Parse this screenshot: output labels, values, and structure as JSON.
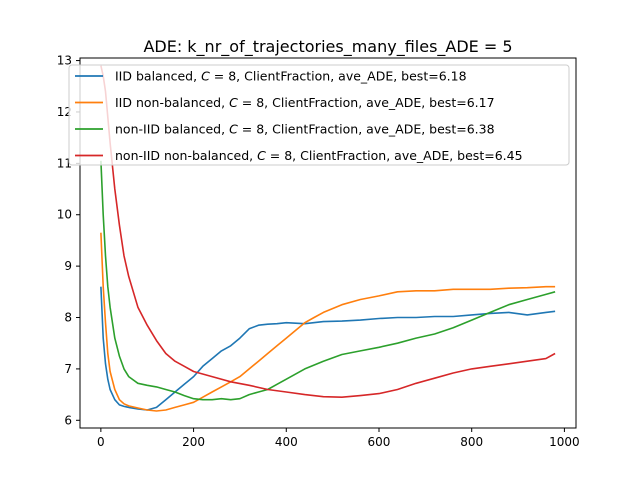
{
  "chart_data": {
    "type": "line",
    "title": "ADE: k_nr_of_trajectories_many_files_ADE = 5",
    "xlabel": "",
    "ylabel": "",
    "xlim": [
      -45,
      1025
    ],
    "ylim": [
      5.85,
      13.05
    ],
    "xticks": [
      0,
      200,
      400,
      600,
      800,
      1000
    ],
    "xtick_labels": [
      "0",
      "200",
      "400",
      "600",
      "800",
      "1000"
    ],
    "yticks": [
      6,
      7,
      8,
      9,
      10,
      11,
      12,
      13
    ],
    "ytick_labels": [
      "6",
      "7",
      "8",
      "9",
      "10",
      "11",
      "12",
      "13"
    ],
    "grid": false,
    "legend_position": "top-left",
    "series": [
      {
        "name": "IID balanced, C = 8, ClientFraction, ave_ADE, best=6.18",
        "legend_prefix": "IID balanced, ",
        "legend_var": "C",
        "legend_suffix": " = 8, ClientFraction, ave_ADE, best=6.18",
        "color": "#1f77b4",
        "x": [
          0,
          5,
          10,
          15,
          20,
          30,
          40,
          50,
          60,
          80,
          100,
          120,
          140,
          160,
          180,
          200,
          220,
          240,
          260,
          280,
          300,
          320,
          340,
          360,
          380,
          400,
          440,
          480,
          520,
          560,
          600,
          640,
          680,
          720,
          760,
          800,
          840,
          880,
          920,
          960,
          980
        ],
        "y": [
          8.6,
          7.6,
          7.1,
          6.8,
          6.6,
          6.4,
          6.3,
          6.27,
          6.25,
          6.22,
          6.2,
          6.25,
          6.4,
          6.55,
          6.7,
          6.85,
          7.05,
          7.2,
          7.35,
          7.45,
          7.6,
          7.78,
          7.85,
          7.87,
          7.88,
          7.9,
          7.88,
          7.92,
          7.93,
          7.95,
          7.98,
          8.0,
          8.0,
          8.02,
          8.02,
          8.05,
          8.08,
          8.1,
          8.05,
          8.1,
          8.12
        ]
      },
      {
        "name": "IID non-balanced, C = 8, ClientFraction, ave_ADE, best=6.17",
        "legend_prefix": "IID non-balanced, ",
        "legend_var": "C",
        "legend_suffix": " = 8, ClientFraction, ave_ADE, best=6.17",
        "color": "#ff7f0e",
        "x": [
          0,
          5,
          10,
          15,
          20,
          30,
          40,
          50,
          60,
          80,
          100,
          120,
          140,
          160,
          180,
          200,
          220,
          240,
          260,
          280,
          300,
          320,
          340,
          360,
          380,
          400,
          420,
          440,
          460,
          480,
          520,
          560,
          600,
          640,
          680,
          720,
          760,
          800,
          840,
          880,
          920,
          960,
          980
        ],
        "y": [
          9.65,
          8.6,
          7.9,
          7.3,
          6.95,
          6.6,
          6.4,
          6.32,
          6.28,
          6.24,
          6.2,
          6.18,
          6.2,
          6.25,
          6.3,
          6.35,
          6.45,
          6.55,
          6.65,
          6.75,
          6.85,
          7.0,
          7.15,
          7.3,
          7.45,
          7.6,
          7.75,
          7.9,
          8.0,
          8.1,
          8.25,
          8.35,
          8.42,
          8.5,
          8.52,
          8.52,
          8.55,
          8.55,
          8.55,
          8.57,
          8.58,
          8.6,
          8.6
        ]
      },
      {
        "name": "non-IID balanced, C = 8, ClientFraction, ave_ADE, best=6.38",
        "legend_prefix": "non-IID balanced, ",
        "legend_var": "C",
        "legend_suffix": " = 8, ClientFraction, ave_ADE, best=6.38",
        "color": "#2ca02c",
        "x": [
          0,
          5,
          10,
          15,
          20,
          30,
          40,
          50,
          60,
          80,
          100,
          120,
          140,
          160,
          180,
          200,
          220,
          240,
          260,
          280,
          300,
          320,
          340,
          360,
          380,
          400,
          440,
          480,
          520,
          560,
          600,
          640,
          680,
          720,
          760,
          800,
          840,
          880,
          920,
          960,
          980
        ],
        "y": [
          11.05,
          10.0,
          9.2,
          8.6,
          8.2,
          7.6,
          7.25,
          7.0,
          6.85,
          6.72,
          6.68,
          6.65,
          6.6,
          6.55,
          6.48,
          6.42,
          6.4,
          6.4,
          6.42,
          6.4,
          6.42,
          6.5,
          6.55,
          6.6,
          6.7,
          6.8,
          7.0,
          7.15,
          7.28,
          7.35,
          7.42,
          7.5,
          7.6,
          7.68,
          7.8,
          7.95,
          8.1,
          8.25,
          8.35,
          8.45,
          8.5
        ]
      },
      {
        "name": "non-IID non-balanced, C = 8, ClientFraction, ave_ADE, best=6.45",
        "legend_prefix": "non-IID non-balanced, ",
        "legend_var": "C",
        "legend_suffix": " = 8, ClientFraction, ave_ADE, best=6.45",
        "color": "#d62728",
        "x": [
          0,
          5,
          10,
          15,
          20,
          30,
          40,
          50,
          60,
          80,
          100,
          120,
          140,
          160,
          180,
          200,
          240,
          280,
          320,
          360,
          400,
          440,
          480,
          520,
          560,
          600,
          640,
          680,
          720,
          760,
          800,
          840,
          880,
          920,
          960,
          980
        ],
        "y": [
          12.9,
          12.7,
          12.4,
          11.9,
          11.4,
          10.5,
          9.8,
          9.2,
          8.8,
          8.2,
          7.85,
          7.55,
          7.3,
          7.15,
          7.05,
          6.95,
          6.85,
          6.75,
          6.68,
          6.6,
          6.55,
          6.5,
          6.46,
          6.45,
          6.48,
          6.52,
          6.6,
          6.72,
          6.82,
          6.92,
          7.0,
          7.05,
          7.1,
          7.15,
          7.2,
          7.3
        ]
      }
    ]
  }
}
